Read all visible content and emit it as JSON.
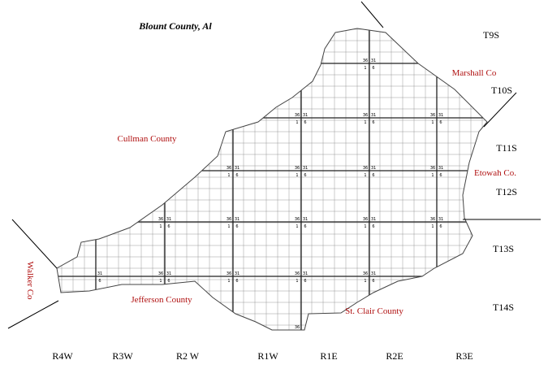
{
  "title": "Blount County, Al",
  "townships": [
    "T9S",
    "T10S",
    "T11S",
    "T12S",
    "T13S",
    "T14S"
  ],
  "ranges": [
    "R4W",
    "R3W",
    "R2 W",
    "R1W",
    "R1E",
    "R2E",
    "R3E"
  ],
  "counties": [
    "Marshall Co",
    "Cullman County",
    "Etowah Co.",
    "Jefferson County",
    "St. Clair County",
    "Walker Co"
  ],
  "corners": [
    {
      "nw": "36",
      "ne": "31",
      "sw": "1",
      "se": "6"
    },
    {
      "nw": "36",
      "ne": "31",
      "sw": "1",
      "se": "6"
    },
    {
      "nw": "36",
      "ne": "31",
      "sw": "1",
      "se": "6"
    },
    {
      "nw": "36",
      "ne": "31",
      "sw": "1",
      "se": "6"
    },
    {
      "nw": "36",
      "ne": "31",
      "sw": "1",
      "se": "6"
    },
    {
      "nw": "36",
      "ne": "31",
      "sw": "1",
      "se": "6"
    },
    {
      "nw": "36",
      "ne": "31",
      "sw": "1",
      "se": "6"
    },
    {
      "nw": "36",
      "ne": "31",
      "sw": "1",
      "se": "6"
    },
    {
      "nw": "36",
      "ne": "31",
      "sw": "1",
      "se": "6"
    },
    {
      "nw": "36",
      "ne": "31",
      "sw": "1",
      "se": "6"
    },
    {
      "nw": "36",
      "ne": "31",
      "sw": "1",
      "se": "6"
    },
    {
      "nw": "36",
      "ne": "31",
      "sw": "1",
      "se": "6"
    },
    {
      "nw": "36",
      "ne": "31",
      "sw": "1",
      "se": "6"
    },
    {
      "ne": "31",
      "se": "6"
    },
    {
      "nw": "36",
      "ne": "31",
      "sw": "1",
      "se": "6"
    },
    {
      "nw": "36",
      "ne": "31",
      "sw": "1",
      "se": "6"
    },
    {
      "nw": "36",
      "ne": "31",
      "sw": "1",
      "se": "6"
    },
    {
      "nw": "36",
      "ne": "31",
      "sw": "1",
      "se": "6"
    },
    {
      "nw": "36"
    }
  ]
}
